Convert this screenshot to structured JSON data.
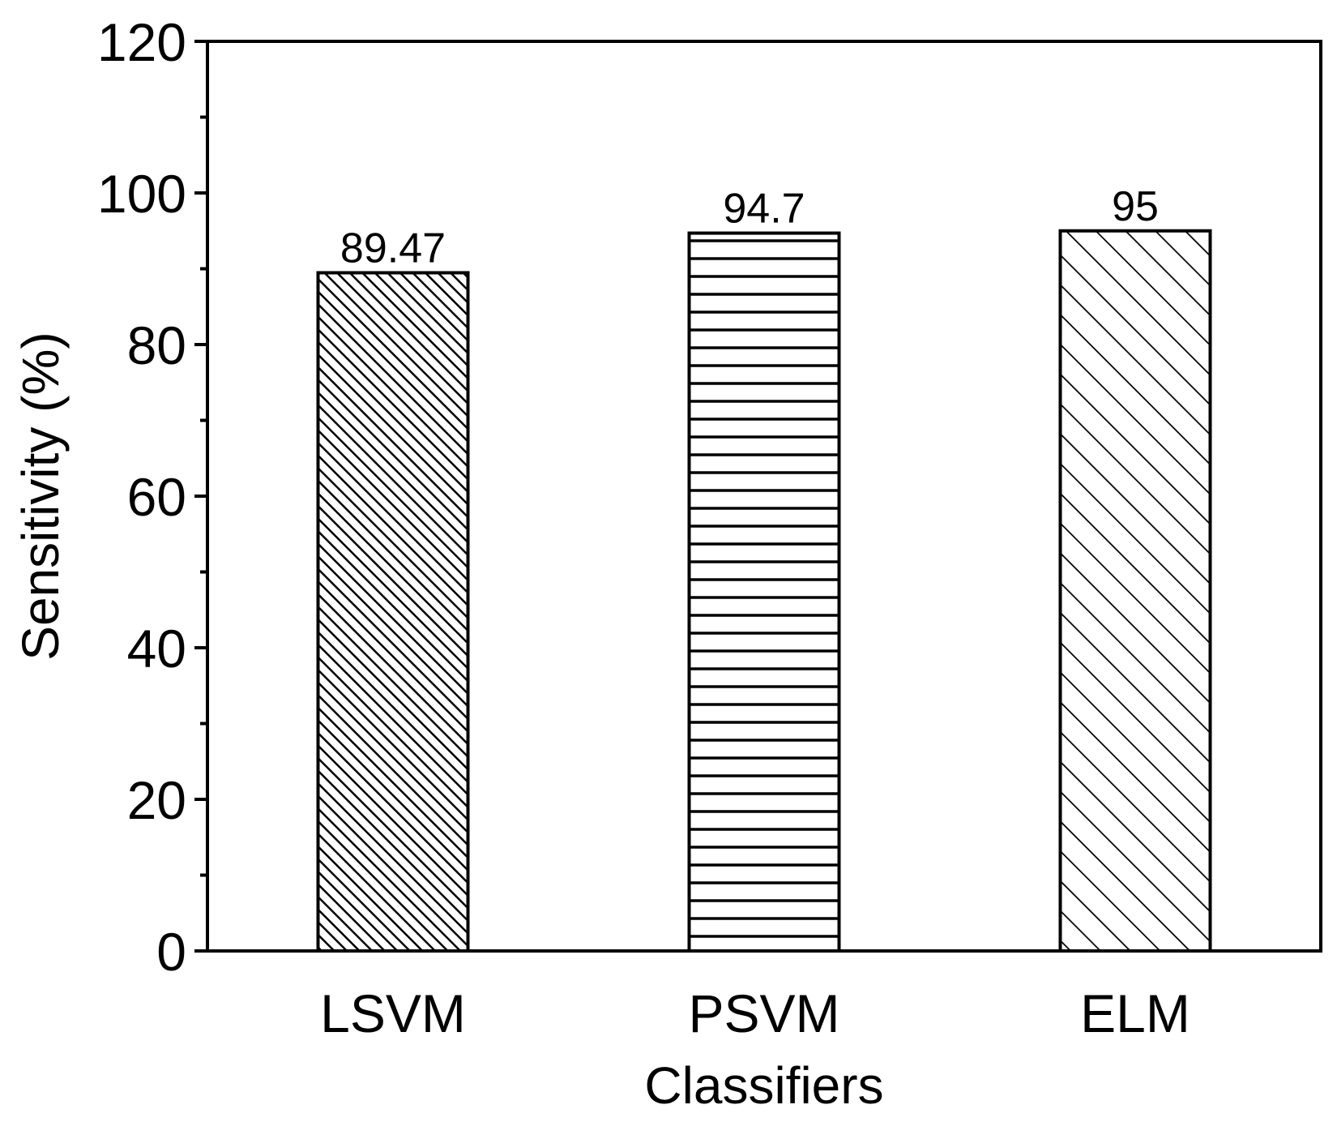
{
  "chart_data": {
    "type": "bar",
    "categories": [
      "LSVM",
      "PSVM",
      "ELM"
    ],
    "values": [
      89.47,
      94.7,
      95
    ],
    "value_labels": [
      "89.47",
      "94.7",
      "95"
    ],
    "patterns": [
      "dense-diagonal",
      "horizontal-lines",
      "sparse-diagonal"
    ],
    "xlabel": "Classifiers",
    "ylabel": "Sensitivity (%)",
    "ylim": [
      0,
      120
    ],
    "yticks": [
      "0",
      "20",
      "40",
      "60",
      "80",
      "100",
      "120"
    ],
    "grid": false,
    "colors": {
      "stroke": "#000000",
      "fill": "#ffffff"
    }
  }
}
